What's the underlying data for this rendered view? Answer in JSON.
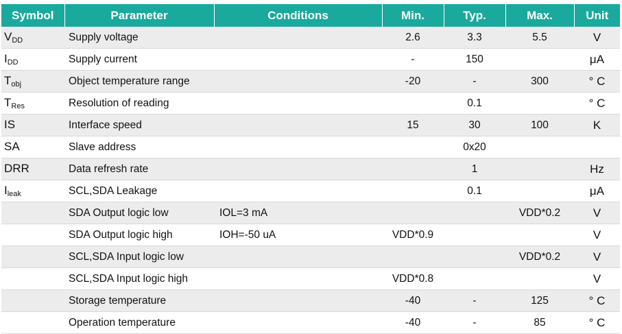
{
  "headers": [
    "Symbol",
    "Parameter",
    "Conditions",
    "Min.",
    "Typ.",
    "Max.",
    "Unit"
  ],
  "rows": [
    {
      "sym": "V",
      "sub": "DD",
      "param": "Supply voltage",
      "cond": "",
      "min": "2.6",
      "typ": "3.3",
      "max": "5.5",
      "unit": "V"
    },
    {
      "sym": "I",
      "sub": "DD",
      "param": "Supply current",
      "cond": "",
      "min": "-",
      "typ": "150",
      "max": "",
      "unit": "μA"
    },
    {
      "sym": "T",
      "sub": "obj",
      "param": "Object temperature range",
      "cond": "",
      "min": "-20",
      "typ": "-",
      "max": "300",
      "unit": "° C"
    },
    {
      "sym": "T",
      "sub": "Res",
      "param": "Resolution of reading",
      "cond": "",
      "min": "",
      "typ": "0.1",
      "max": "",
      "unit": "° C"
    },
    {
      "sym": "IS",
      "sub": "",
      "param": "Interface speed",
      "cond": "",
      "min": "15",
      "typ": "30",
      "max": "100",
      "unit": "K"
    },
    {
      "sym": "SA",
      "sub": "",
      "param": "Slave address",
      "cond": "",
      "min": "",
      "typ": "0x20",
      "max": "",
      "unit": ""
    },
    {
      "sym": "DRR",
      "sub": "",
      "param": "Data refresh rate",
      "cond": "",
      "min": "",
      "typ": "1",
      "max": "",
      "unit": "Hz"
    },
    {
      "sym": "I",
      "sub": "leak",
      "param": "SCL,SDA Leakage",
      "cond": "",
      "min": "",
      "typ": "0.1",
      "max": "",
      "unit": "μA"
    },
    {
      "sym": "",
      "sub": "",
      "param": "SDA Output logic low",
      "cond": "IOL=3 mA",
      "min": "",
      "typ": "",
      "max": "VDD*0.2",
      "unit": "V"
    },
    {
      "sym": "",
      "sub": "",
      "param": "SDA Output logic high",
      "cond": "IOH=-50 uA",
      "min": "VDD*0.9",
      "typ": "",
      "max": "",
      "unit": "V"
    },
    {
      "sym": "",
      "sub": "",
      "param": "SCL,SDA Input logic low",
      "cond": "",
      "min": "",
      "typ": "",
      "max": "VDD*0.2",
      "unit": "V"
    },
    {
      "sym": "",
      "sub": "",
      "param": "SCL,SDA Input logic high",
      "cond": "",
      "min": "VDD*0.8",
      "typ": "",
      "max": "",
      "unit": "V"
    },
    {
      "sym": "",
      "sub": "",
      "param": "Storage temperature",
      "cond": "",
      "min": "-40",
      "typ": "-",
      "max": "125",
      "unit": "° C"
    },
    {
      "sym": "",
      "sub": "",
      "param": "Operation temperature",
      "cond": "",
      "min": "-40",
      "typ": "-",
      "max": "85",
      "unit": "° C"
    }
  ]
}
